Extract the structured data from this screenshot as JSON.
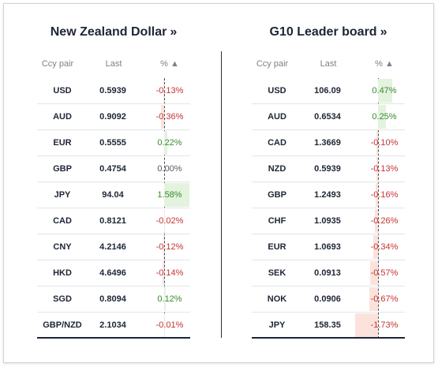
{
  "left_panel": {
    "title": "New Zealand Dollar",
    "title_arrow": "»",
    "headers": {
      "pair": "Ccy pair",
      "last": "Last",
      "pct": "% ▲"
    },
    "rows": [
      {
        "ccy": "USD",
        "last": "0.5939",
        "pct": "-0.13%",
        "value": -0.13
      },
      {
        "ccy": "AUD",
        "last": "0.9092",
        "pct": "-0.36%",
        "value": -0.36
      },
      {
        "ccy": "EUR",
        "last": "0.5555",
        "pct": "0.22%",
        "value": 0.22
      },
      {
        "ccy": "GBP",
        "last": "0.4754",
        "pct": "0.00%",
        "value": 0.0
      },
      {
        "ccy": "JPY",
        "last": "94.04",
        "pct": "1.58%",
        "value": 1.58
      },
      {
        "ccy": "CAD",
        "last": "0.8121",
        "pct": "-0.02%",
        "value": -0.02
      },
      {
        "ccy": "CNY",
        "last": "4.2146",
        "pct": "-0.12%",
        "value": -0.12
      },
      {
        "ccy": "HKD",
        "last": "4.6496",
        "pct": "-0.14%",
        "value": -0.14
      },
      {
        "ccy": "SGD",
        "last": "0.8094",
        "pct": "0.12%",
        "value": 0.12
      },
      {
        "ccy": "GBP/NZD",
        "last": "2.1034",
        "pct": "-0.01%",
        "value": -0.01
      }
    ]
  },
  "right_panel": {
    "title": "G10 Leader board",
    "title_arrow": "»",
    "headers": {
      "pair": "Ccy pair",
      "last": "Last",
      "pct": "% ▲"
    },
    "rows": [
      {
        "ccy": "USD",
        "last": "106.09",
        "pct": "0.47%",
        "value": 0.47
      },
      {
        "ccy": "AUD",
        "last": "0.6534",
        "pct": "0.25%",
        "value": 0.25
      },
      {
        "ccy": "CAD",
        "last": "1.3669",
        "pct": "-0.10%",
        "value": -0.1
      },
      {
        "ccy": "NZD",
        "last": "0.5939",
        "pct": "-0.13%",
        "value": -0.13
      },
      {
        "ccy": "GBP",
        "last": "1.2493",
        "pct": "-0.16%",
        "value": -0.16
      },
      {
        "ccy": "CHF",
        "last": "1.0935",
        "pct": "-0.26%",
        "value": -0.26
      },
      {
        "ccy": "EUR",
        "last": "1.0693",
        "pct": "-0.34%",
        "value": -0.34
      },
      {
        "ccy": "SEK",
        "last": "0.0913",
        "pct": "-0.57%",
        "value": -0.57
      },
      {
        "ccy": "NOK",
        "last": "0.0906",
        "pct": "-0.67%",
        "value": -0.67
      },
      {
        "ccy": "JPY",
        "last": "158.35",
        "pct": "-1.73%",
        "value": -1.73
      }
    ]
  },
  "colors": {
    "positive": "#3a8a2e",
    "negative": "#c83232",
    "positive_bar": "#e3f3de",
    "negative_bar": "#fbe3dc"
  }
}
